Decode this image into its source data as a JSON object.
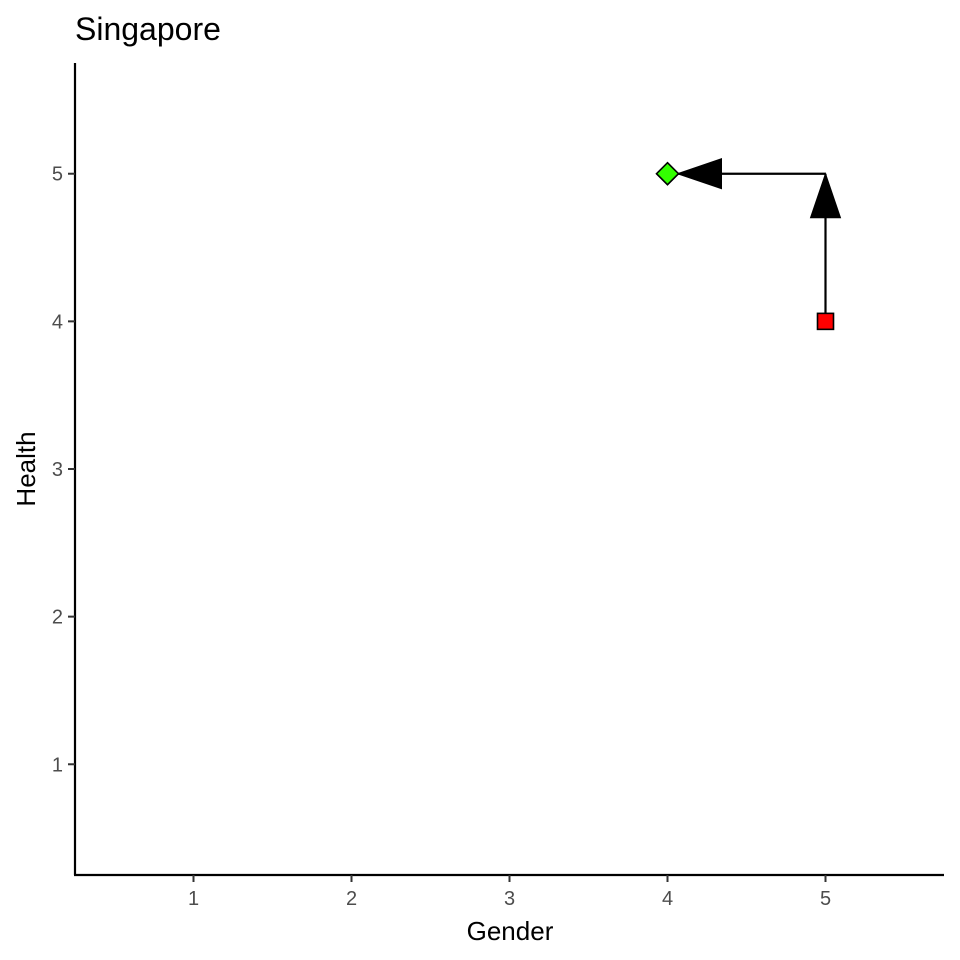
{
  "chart_data": {
    "type": "scatter",
    "title": "Singapore",
    "xlabel": "Gender",
    "ylabel": "Health",
    "xlim": [
      0.25,
      5.75
    ],
    "ylim": [
      0.25,
      5.75
    ],
    "xticks": [
      1,
      2,
      3,
      4,
      5
    ],
    "yticks": [
      1,
      2,
      3,
      4,
      5
    ],
    "grid": false,
    "points": [
      {
        "x": 5,
        "y": 4,
        "shape": "square",
        "color": "#FF0000"
      },
      {
        "x": 4,
        "y": 5,
        "shape": "diamond",
        "color": "#33FF00"
      }
    ],
    "path": [
      {
        "x": 5,
        "y": 4
      },
      {
        "x": 5,
        "y": 5
      },
      {
        "x": 4,
        "y": 5
      }
    ],
    "arrow_color": "#000000"
  }
}
